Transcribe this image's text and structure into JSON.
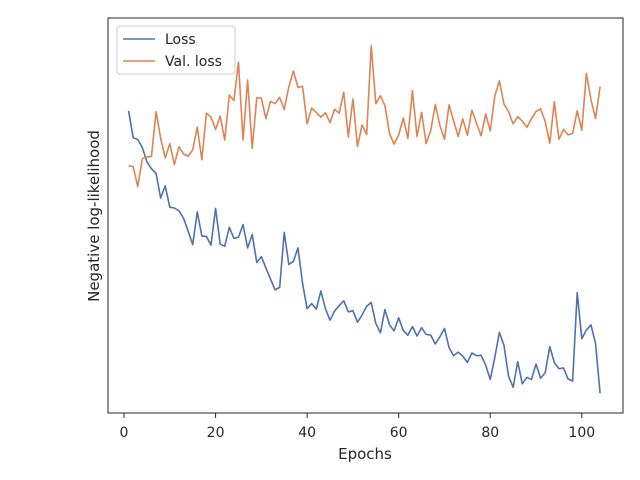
{
  "chart_data": {
    "type": "line",
    "xlabel": "Epochs",
    "ylabel": "Negative log-likelihood",
    "xlim": [
      -3.5,
      109
    ],
    "ylim": [
      0,
      1
    ],
    "xticks": [
      0,
      20,
      40,
      60,
      80,
      100
    ],
    "grid": false,
    "legend_position": "top-left",
    "series": [
      {
        "name": "Loss",
        "color": "#4c72b0",
        "x": [
          1,
          2,
          3,
          4,
          5,
          6,
          7,
          8,
          9,
          10,
          11,
          12,
          13,
          14,
          15,
          16,
          17,
          18,
          19,
          20,
          21,
          22,
          23,
          24,
          25,
          26,
          27,
          28,
          29,
          30,
          31,
          32,
          33,
          34,
          35,
          36,
          37,
          38,
          39,
          40,
          41,
          42,
          43,
          44,
          45,
          46,
          47,
          48,
          49,
          50,
          51,
          52,
          53,
          54,
          55,
          56,
          57,
          58,
          59,
          60,
          61,
          62,
          63,
          64,
          65,
          66,
          67,
          68,
          69,
          70,
          71,
          72,
          73,
          74,
          75,
          76,
          77,
          78,
          79,
          80,
          81,
          82,
          83,
          84,
          85,
          86,
          87,
          88,
          89,
          90,
          91,
          92,
          93,
          94,
          95,
          96,
          97,
          98,
          99,
          100,
          101,
          102,
          103,
          104
        ],
        "y": [
          0.765,
          0.697,
          0.692,
          0.672,
          0.636,
          0.618,
          0.607,
          0.544,
          0.575,
          0.521,
          0.519,
          0.512,
          0.493,
          0.461,
          0.426,
          0.509,
          0.448,
          0.447,
          0.425,
          0.518,
          0.428,
          0.422,
          0.47,
          0.442,
          0.445,
          0.477,
          0.418,
          0.452,
          0.381,
          0.396,
          0.367,
          0.339,
          0.312,
          0.318,
          0.457,
          0.376,
          0.384,
          0.418,
          0.328,
          0.264,
          0.277,
          0.263,
          0.309,
          0.264,
          0.235,
          0.258,
          0.272,
          0.284,
          0.256,
          0.259,
          0.23,
          0.248,
          0.27,
          0.28,
          0.227,
          0.203,
          0.262,
          0.223,
          0.208,
          0.241,
          0.209,
          0.197,
          0.219,
          0.195,
          0.216,
          0.199,
          0.197,
          0.175,
          0.193,
          0.214,
          0.166,
          0.145,
          0.154,
          0.144,
          0.128,
          0.152,
          0.145,
          0.146,
          0.121,
          0.085,
          0.141,
          0.204,
          0.171,
          0.093,
          0.065,
          0.13,
          0.074,
          0.09,
          0.085,
          0.124,
          0.088,
          0.102,
          0.168,
          0.128,
          0.112,
          0.114,
          0.086,
          0.081,
          0.305,
          0.188,
          0.21,
          0.223,
          0.176,
          0.05
        ]
      },
      {
        "name": "Val. loss",
        "color": "#dd8452",
        "x": [
          1,
          2,
          3,
          4,
          5,
          6,
          7,
          8,
          9,
          10,
          11,
          12,
          13,
          14,
          15,
          16,
          17,
          18,
          19,
          20,
          21,
          22,
          23,
          24,
          25,
          26,
          27,
          28,
          29,
          30,
          31,
          32,
          33,
          34,
          35,
          36,
          37,
          38,
          39,
          40,
          41,
          42,
          43,
          44,
          45,
          46,
          47,
          48,
          49,
          50,
          51,
          52,
          53,
          54,
          55,
          56,
          57,
          58,
          59,
          60,
          61,
          62,
          63,
          64,
          65,
          66,
          67,
          68,
          69,
          70,
          71,
          72,
          73,
          74,
          75,
          76,
          77,
          78,
          79,
          80,
          81,
          82,
          83,
          84,
          85,
          86,
          87,
          88,
          89,
          90,
          91,
          92,
          93,
          94,
          95,
          96,
          97,
          98,
          99,
          100,
          101,
          102,
          103,
          104
        ],
        "y": [
          0.626,
          0.624,
          0.573,
          0.644,
          0.648,
          0.65,
          0.763,
          0.696,
          0.646,
          0.682,
          0.629,
          0.674,
          0.656,
          0.65,
          0.666,
          0.724,
          0.641,
          0.759,
          0.749,
          0.718,
          0.752,
          0.691,
          0.805,
          0.791,
          0.888,
          0.691,
          0.843,
          0.67,
          0.798,
          0.797,
          0.745,
          0.789,
          0.783,
          0.799,
          0.768,
          0.826,
          0.866,
          0.824,
          0.827,
          0.732,
          0.772,
          0.761,
          0.749,
          0.76,
          0.735,
          0.769,
          0.759,
          0.812,
          0.699,
          0.795,
          0.675,
          0.729,
          0.705,
          0.93,
          0.783,
          0.803,
          0.778,
          0.707,
          0.681,
          0.704,
          0.747,
          0.695,
          0.816,
          0.7,
          0.761,
          0.682,
          0.715,
          0.781,
          0.728,
          0.693,
          0.78,
          0.74,
          0.7,
          0.745,
          0.703,
          0.767,
          0.733,
          0.702,
          0.757,
          0.714,
          0.803,
          0.841,
          0.782,
          0.763,
          0.732,
          0.75,
          0.739,
          0.723,
          0.745,
          0.763,
          0.77,
          0.738,
          0.683,
          0.788,
          0.693,
          0.718,
          0.704,
          0.708,
          0.765,
          0.716,
          0.86,
          0.793,
          0.746,
          0.826
        ]
      }
    ]
  }
}
